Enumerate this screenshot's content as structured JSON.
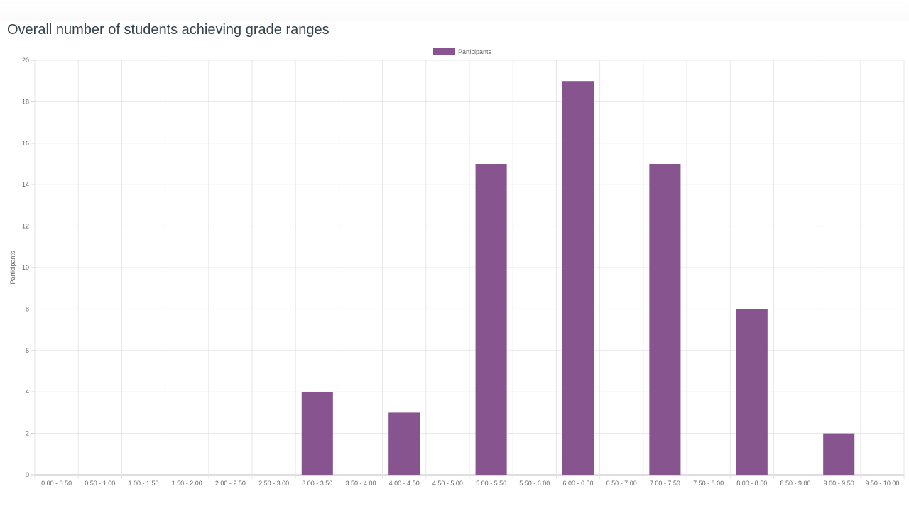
{
  "page": {
    "title": "Overall number of students achieving grade ranges"
  },
  "chart_data": {
    "type": "bar",
    "title": "Overall number of students achieving grade ranges",
    "xlabel": "",
    "ylabel": "Participants",
    "ylim": [
      0,
      20
    ],
    "yticks": [
      0,
      2,
      4,
      6,
      8,
      10,
      12,
      14,
      16,
      18,
      20
    ],
    "grid": true,
    "legend_position": "top",
    "categories": [
      "0.00 - 0.50",
      "0.50 - 1.00",
      "1.00 - 1.50",
      "1.50 - 2.00",
      "2.00 - 2.50",
      "2.50 - 3.00",
      "3.00 - 3.50",
      "3.50 - 4.00",
      "4.00 - 4.50",
      "4.50 - 5.00",
      "5.00 - 5.50",
      "5.50 - 6.00",
      "6.00 - 6.50",
      "6.50 - 7.00",
      "7.00 - 7.50",
      "7.50 - 8.00",
      "8.00 - 8.50",
      "8.50 - 9.00",
      "9.00 - 9.50",
      "9.50 - 10.00"
    ],
    "series": [
      {
        "name": "Participants",
        "color": "#87548f",
        "values": [
          0,
          0,
          0,
          0,
          0,
          0,
          4,
          0,
          3,
          0,
          15,
          0,
          19,
          0,
          15,
          0,
          8,
          0,
          2,
          0
        ]
      }
    ]
  }
}
